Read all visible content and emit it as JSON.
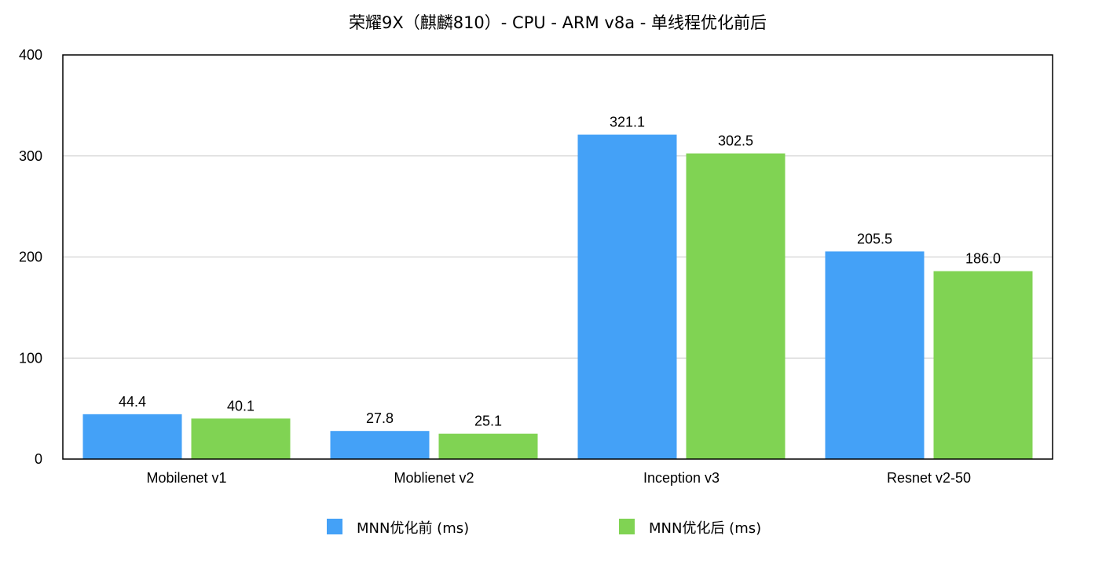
{
  "chart_data": {
    "type": "bar",
    "title": "荣耀9X（麒麟810）- CPU - ARM v8a - 单线程优化前后",
    "categories": [
      "Mobilenet v1",
      "Moblienet v2",
      "Inception v3",
      "Resnet v2-50"
    ],
    "series": [
      {
        "name": "MNN优化前 (ms)",
        "color": "#44a1f7",
        "values": [
          44.4,
          27.8,
          321.1,
          205.5
        ],
        "labels": [
          "44.4",
          "27.8",
          "321.1",
          "205.5"
        ]
      },
      {
        "name": "MNN优化后 (ms)",
        "color": "#80d353",
        "values": [
          40.1,
          25.1,
          302.5,
          186.0
        ],
        "labels": [
          "40.1",
          "25.1",
          "302.5",
          "186.0"
        ]
      }
    ],
    "ylim": [
      0,
      400
    ],
    "yticks": [
      0,
      100,
      200,
      300,
      400
    ],
    "ytick_labels": [
      "0",
      "100",
      "200",
      "300",
      "400"
    ],
    "xlabel": "",
    "ylabel": "",
    "grid": true,
    "legend_position": "bottom"
  }
}
